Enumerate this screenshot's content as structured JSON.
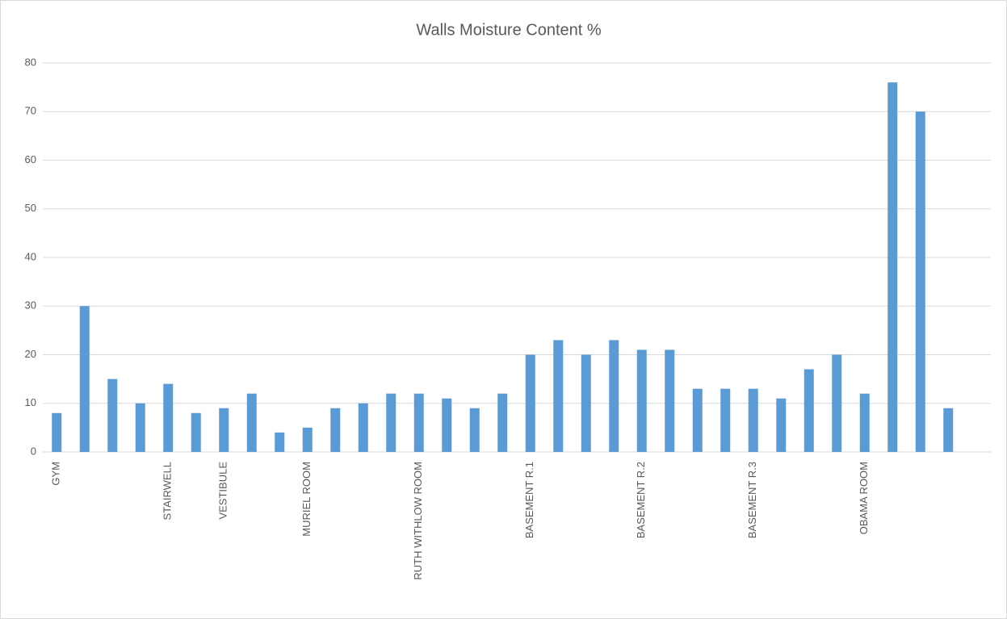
{
  "chart_data": {
    "type": "bar",
    "title": "Walls Moisture Content %",
    "categories": [
      "GYM",
      null,
      null,
      null,
      "STAIRWELL",
      null,
      "VESTIBULE",
      null,
      null,
      "MURIEL ROOM",
      null,
      null,
      null,
      "RUTH WITHLOW ROOM",
      null,
      null,
      null,
      "BASEMENT R.1",
      null,
      null,
      null,
      "BASEMENT R.2",
      null,
      null,
      null,
      "BASEMENT R.3",
      null,
      null,
      null,
      "OBAMA ROOM",
      null,
      null,
      null
    ],
    "values": [
      8,
      30,
      15,
      10,
      14,
      8,
      9,
      12,
      4,
      5,
      9,
      10,
      12,
      12,
      11,
      9,
      12,
      20,
      23,
      20,
      23,
      21,
      21,
      13,
      13,
      13,
      11,
      17,
      20,
      12,
      76,
      70,
      9
    ],
    "color": "#5b9bd5",
    "ylim": [
      0,
      80
    ],
    "yticks": [
      0,
      10,
      20,
      30,
      40,
      50,
      60,
      70,
      80
    ],
    "grid": true
  }
}
